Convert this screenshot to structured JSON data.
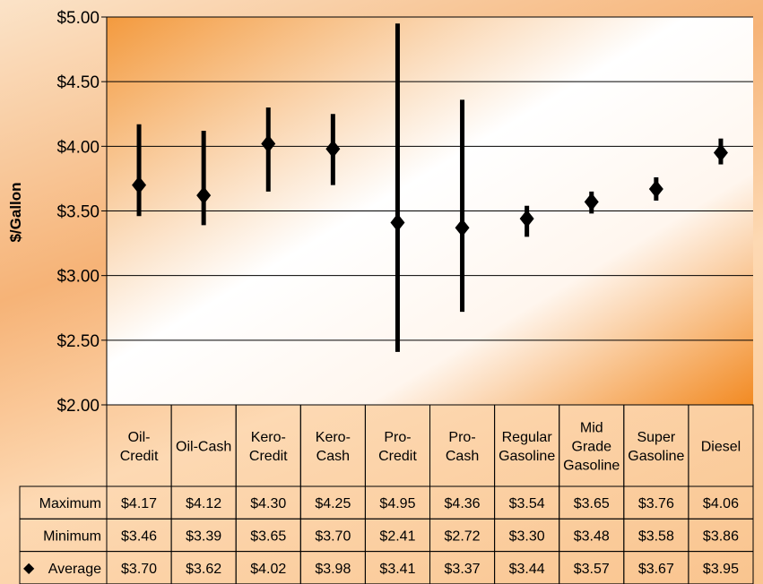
{
  "chart_data": {
    "type": "high-low-average",
    "ylabel": "$/Gallon",
    "ylim": [
      2.0,
      5.0
    ],
    "yticks": [
      "$2.00",
      "$2.50",
      "$3.00",
      "$3.50",
      "$4.00",
      "$4.50",
      "$5.00"
    ],
    "ytick_values": [
      2.0,
      2.5,
      3.0,
      3.5,
      4.0,
      4.5,
      5.0
    ],
    "categories": [
      [
        "Oil-",
        "Credit"
      ],
      [
        "Oil-Cash"
      ],
      [
        "Kero-",
        "Credit"
      ],
      [
        "Kero-",
        "Cash"
      ],
      [
        "Pro-",
        "Credit"
      ],
      [
        "Pro-",
        "Cash"
      ],
      [
        "Regular",
        "Gasoline"
      ],
      [
        "Mid",
        "Grade",
        "Gasoline"
      ],
      [
        "Super",
        "Gasoline"
      ],
      [
        "Diesel"
      ]
    ],
    "series": [
      {
        "name": "Maximum",
        "marker": "",
        "values": [
          4.17,
          4.12,
          4.3,
          4.25,
          4.95,
          4.36,
          3.54,
          3.65,
          3.76,
          4.06
        ],
        "labels": [
          "$4.17",
          "$4.12",
          "$4.30",
          "$4.25",
          "$4.95",
          "$4.36",
          "$3.54",
          "$3.65",
          "$3.76",
          "$4.06"
        ]
      },
      {
        "name": "Minimum",
        "marker": "",
        "values": [
          3.46,
          3.39,
          3.65,
          3.7,
          2.41,
          2.72,
          3.3,
          3.48,
          3.58,
          3.86
        ],
        "labels": [
          "$3.46",
          "$3.39",
          "$3.65",
          "$3.70",
          "$2.41",
          "$2.72",
          "$3.30",
          "$3.48",
          "$3.58",
          "$3.86"
        ]
      },
      {
        "name": "Average",
        "marker": "◆",
        "values": [
          3.7,
          3.62,
          4.02,
          3.98,
          3.41,
          3.37,
          3.44,
          3.57,
          3.67,
          3.95
        ],
        "labels": [
          "$3.70",
          "$3.62",
          "$4.02",
          "$3.98",
          "$3.41",
          "$3.37",
          "$3.44",
          "$3.57",
          "$3.67",
          "$3.95"
        ]
      }
    ],
    "grid": true,
    "colors": {
      "marks": "#000000",
      "gridline": "#000000",
      "plot_bg_light": "#ffffff",
      "plot_bg_dark": "#f08a24"
    }
  }
}
